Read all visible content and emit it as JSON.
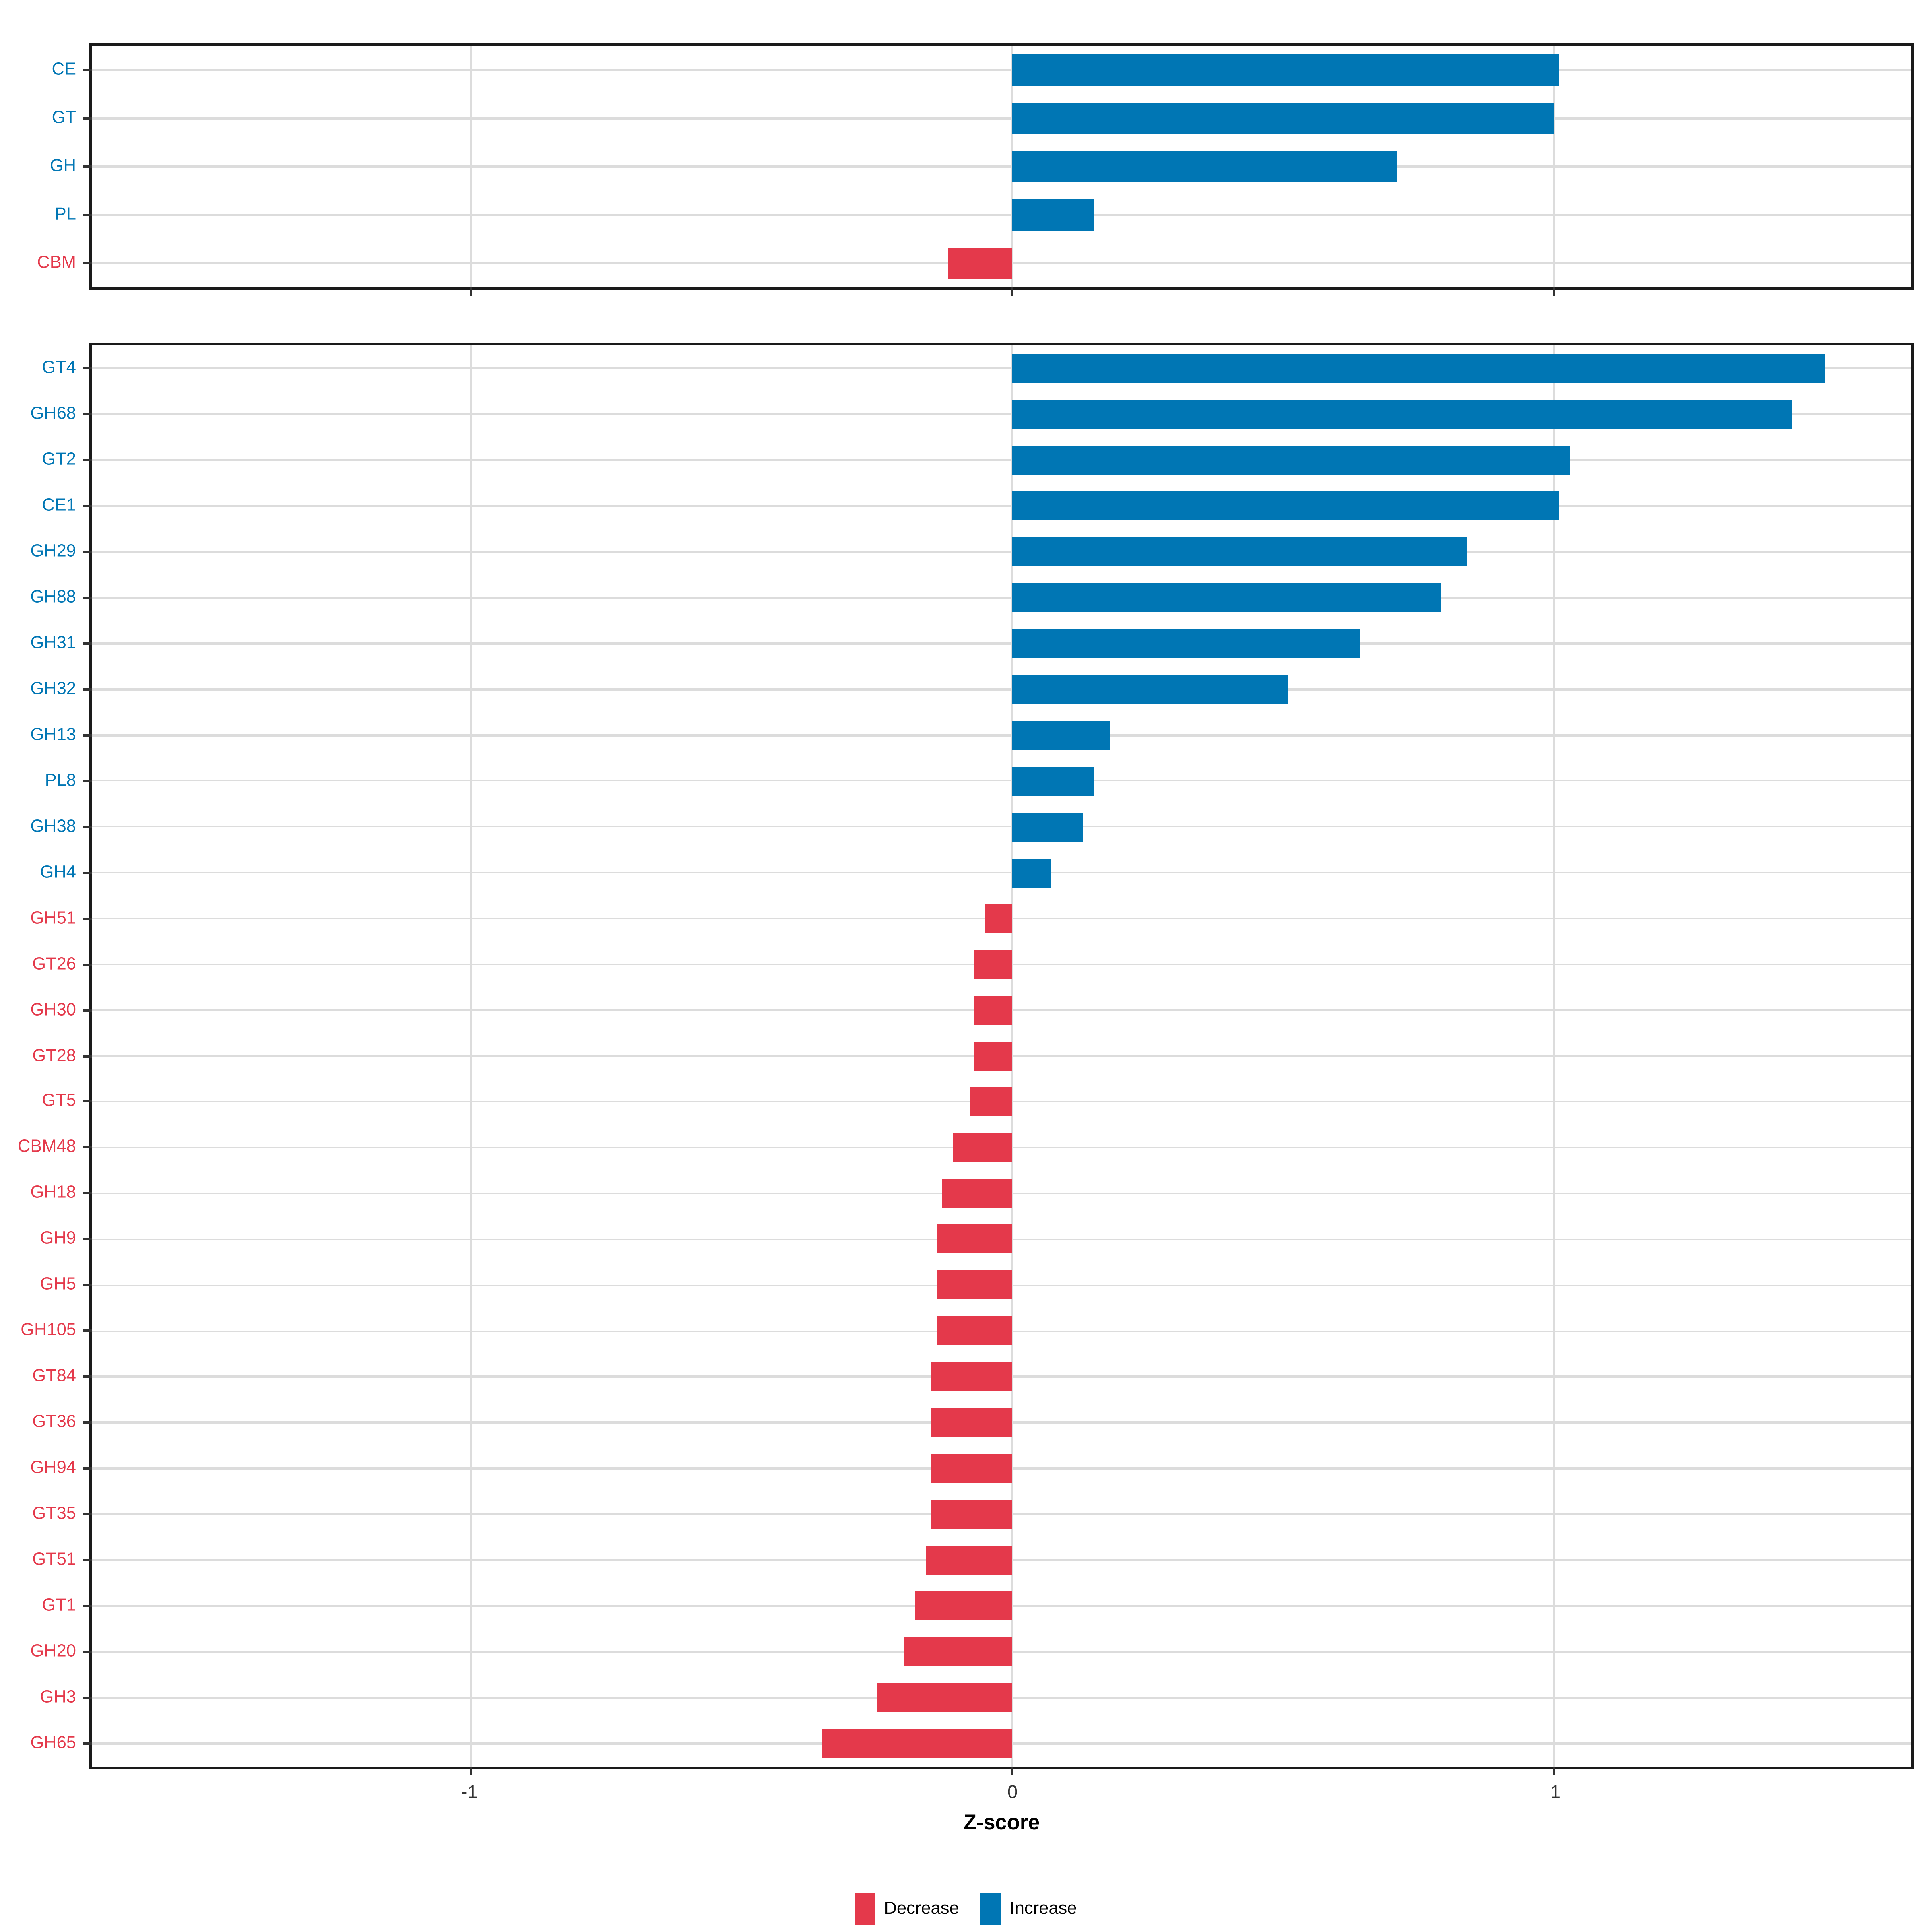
{
  "figure": {
    "background": "#FFFFFF"
  },
  "colors": {
    "increase": "#0076B4",
    "decrease": "#E4394B",
    "grid": "#DCDCDC",
    "panel_border": "#1A1A1A",
    "tick_mark": "#333333",
    "tick_label": "#333333",
    "axis_title": "#000000"
  },
  "x_axis": {
    "title": "Z-score",
    "ticks": [
      -1,
      0,
      1
    ],
    "tick_labels": [
      "-1",
      "0",
      "1"
    ],
    "xlim": [
      -1.7,
      1.66
    ]
  },
  "legend": {
    "position": "bottom",
    "items": [
      {
        "label": "Decrease",
        "color": "#E4394B"
      },
      {
        "label": "Increase",
        "color": "#0076B4"
      }
    ]
  },
  "chart_data": [
    {
      "type": "bar",
      "orientation": "horizontal",
      "panel": "cazyme-classes",
      "grid": true,
      "xlabel": "Z-score",
      "xlim": [
        -1.7,
        1.66
      ],
      "categories": [
        "CE",
        "GT",
        "GH",
        "PL",
        "CBM"
      ],
      "values": [
        1.01,
        1.0,
        0.71,
        0.15,
        -0.12
      ],
      "directions": [
        "Increase",
        "Increase",
        "Increase",
        "Increase",
        "Decrease"
      ]
    },
    {
      "type": "bar",
      "orientation": "horizontal",
      "panel": "cazyme-families",
      "grid": true,
      "xlabel": "Z-score",
      "xlim": [
        -1.7,
        1.66
      ],
      "categories": [
        "GT4",
        "GH68",
        "GT2",
        "CE1",
        "GH29",
        "GH88",
        "GH31",
        "GH32",
        "GH13",
        "PL8",
        "GH38",
        "GH4",
        "GH51",
        "GT26",
        "GH30",
        "GT28",
        "GT5",
        "CBM48",
        "GH18",
        "GH9",
        "GH5",
        "GH105",
        "GT84",
        "GT36",
        "GH94",
        "GT35",
        "GT51",
        "GT1",
        "GH20",
        "GH3",
        "GH65"
      ],
      "values": [
        1.5,
        1.44,
        1.03,
        1.01,
        0.84,
        0.79,
        0.64,
        0.51,
        0.18,
        0.15,
        0.13,
        0.07,
        -0.05,
        -0.07,
        -0.07,
        -0.07,
        -0.08,
        -0.11,
        -0.13,
        -0.14,
        -0.14,
        -0.14,
        -0.15,
        -0.15,
        -0.15,
        -0.15,
        -0.16,
        -0.18,
        -0.2,
        -0.25,
        -0.35
      ],
      "directions": [
        "Increase",
        "Increase",
        "Increase",
        "Increase",
        "Increase",
        "Increase",
        "Increase",
        "Increase",
        "Increase",
        "Increase",
        "Increase",
        "Increase",
        "Decrease",
        "Decrease",
        "Decrease",
        "Decrease",
        "Decrease",
        "Decrease",
        "Decrease",
        "Decrease",
        "Decrease",
        "Decrease",
        "Decrease",
        "Decrease",
        "Decrease",
        "Decrease",
        "Decrease",
        "Decrease",
        "Decrease",
        "Decrease",
        "Decrease"
      ]
    }
  ]
}
